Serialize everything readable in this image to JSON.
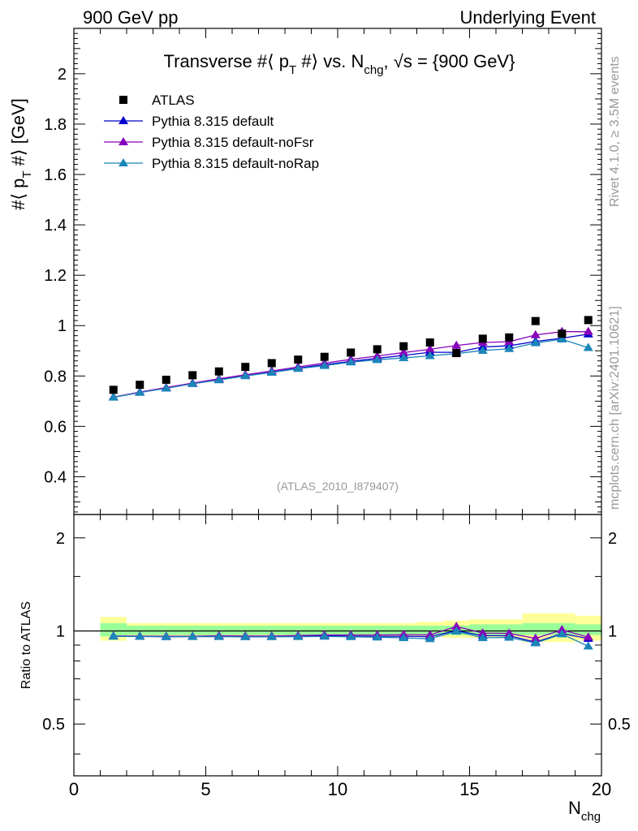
{
  "header": {
    "left": "900 GeV pp",
    "right": "Underlying Event"
  },
  "side_labels": {
    "rivet": "Rivet 4.1.0, ≥ 3.5M events",
    "mcplots": "mcplots.cern.ch [arXiv:2401.10621]"
  },
  "chart_data": [
    {
      "type": "line",
      "title": "Transverse #⟨ p_T #⟩ vs. N_chg, √s = {900 GeV}",
      "title_parts": {
        "pre": "Transverse #⟨ p",
        "sub1": "T",
        "mid": " #⟩ vs. N",
        "sub2": "chg",
        "post": ", √s = {900 GeV}"
      },
      "ylabel_parts": {
        "pre": "#⟨ p",
        "sub": "T",
        "post": " #⟩ [GeV]"
      },
      "xlabel_parts": {
        "main": "N",
        "sub": "chg"
      },
      "watermark": "(ATLAS_2010_I879407)",
      "xlim": [
        0,
        20
      ],
      "ylim": [
        0.25,
        2.18
      ],
      "y_ticks": [
        0.4,
        0.6,
        0.8,
        1.0,
        1.2,
        1.4,
        1.6,
        1.8,
        2.0
      ],
      "y_tick_labels": [
        "0.4",
        "0.6",
        "0.8",
        "1",
        "1.2",
        "1.4",
        "1.6",
        "1.8",
        "2"
      ],
      "x": [
        1.5,
        2.5,
        3.5,
        4.5,
        5.5,
        6.5,
        7.5,
        8.5,
        9.5,
        10.5,
        11.5,
        12.5,
        13.5,
        14.5,
        15.5,
        16.5,
        17.5,
        18.5,
        19.5
      ],
      "legend_position": "top-left",
      "series": [
        {
          "name": "ATLAS",
          "marker": "square",
          "color": "#000000",
          "values": [
            0.745,
            0.765,
            0.785,
            0.803,
            0.818,
            0.836,
            0.851,
            0.865,
            0.876,
            0.893,
            0.906,
            0.918,
            0.933,
            0.891,
            0.948,
            0.953,
            1.018,
            0.968,
            1.022
          ]
        },
        {
          "name": "Pythia 8.315 default",
          "marker": "triangle",
          "color": "#0000cc",
          "values": [
            0.716,
            0.735,
            0.752,
            0.77,
            0.786,
            0.801,
            0.816,
            0.831,
            0.845,
            0.858,
            0.87,
            0.882,
            0.894,
            0.894,
            0.915,
            0.92,
            0.937,
            0.95,
            0.966
          ]
        },
        {
          "name": "Pythia 8.315 default-noFsr",
          "marker": "triangle",
          "color": "#8800bb",
          "values": [
            0.716,
            0.736,
            0.754,
            0.772,
            0.789,
            0.805,
            0.82,
            0.836,
            0.851,
            0.866,
            0.879,
            0.893,
            0.906,
            0.921,
            0.933,
            0.936,
            0.963,
            0.976,
            0.976
          ]
        },
        {
          "name": "Pythia 8.315 default-noRap",
          "marker": "triangle",
          "color": "#1a86b8",
          "values": [
            0.715,
            0.734,
            0.751,
            0.769,
            0.784,
            0.8,
            0.814,
            0.829,
            0.841,
            0.855,
            0.864,
            0.872,
            0.88,
            0.889,
            0.901,
            0.908,
            0.931,
            0.946,
            0.912
          ]
        }
      ]
    },
    {
      "type": "line",
      "ylabel": "Ratio to ATLAS",
      "xlim": [
        0,
        20
      ],
      "ylim": [
        0.34,
        2.38
      ],
      "y_scale": "log",
      "y_ticks": [
        0.5,
        1,
        2
      ],
      "y_tick_labels": [
        "0.5",
        "1",
        "2"
      ],
      "x_ticks": [
        0,
        5,
        10,
        15,
        20
      ],
      "x_tick_labels": [
        "0",
        "5",
        "10",
        "15",
        "20"
      ],
      "bands": {
        "x_edges": [
          1,
          2,
          3,
          4,
          5,
          6,
          7,
          8,
          9,
          10,
          11,
          12,
          13,
          14,
          15,
          16,
          17,
          18,
          19,
          20
        ],
        "outer_color": "#ffff99",
        "inner_color": "#99ff99",
        "outer": [
          [
            0.93,
            1.11
          ],
          [
            0.96,
            1.06
          ],
          [
            0.96,
            1.06
          ],
          [
            0.96,
            1.06
          ],
          [
            0.96,
            1.06
          ],
          [
            0.96,
            1.06
          ],
          [
            0.96,
            1.06
          ],
          [
            0.96,
            1.06
          ],
          [
            0.96,
            1.06
          ],
          [
            0.96,
            1.06
          ],
          [
            0.96,
            1.06
          ],
          [
            0.96,
            1.06
          ],
          [
            0.96,
            1.07
          ],
          [
            0.95,
            1.08
          ],
          [
            0.95,
            1.09
          ],
          [
            0.95,
            1.09
          ],
          [
            0.92,
            1.14
          ],
          [
            0.92,
            1.14
          ],
          [
            0.93,
            1.12
          ]
        ],
        "inner": [
          [
            0.96,
            1.06
          ],
          [
            0.97,
            1.04
          ],
          [
            0.97,
            1.04
          ],
          [
            0.97,
            1.04
          ],
          [
            0.97,
            1.04
          ],
          [
            0.97,
            1.04
          ],
          [
            0.97,
            1.04
          ],
          [
            0.97,
            1.04
          ],
          [
            0.97,
            1.04
          ],
          [
            0.97,
            1.04
          ],
          [
            0.97,
            1.04
          ],
          [
            0.97,
            1.04
          ],
          [
            0.97,
            1.04
          ],
          [
            0.97,
            1.04
          ],
          [
            0.97,
            1.05
          ],
          [
            0.97,
            1.05
          ],
          [
            0.97,
            1.06
          ],
          [
            0.97,
            1.06
          ],
          [
            0.97,
            1.05
          ]
        ]
      },
      "series": [
        {
          "name": "Pythia 8.315 default",
          "color": "#0000cc",
          "values": [
            0.962,
            0.961,
            0.958,
            0.959,
            0.961,
            0.958,
            0.959,
            0.961,
            0.965,
            0.961,
            0.96,
            0.961,
            0.958,
            1.003,
            0.965,
            0.965,
            0.92,
            0.981,
            0.945
          ]
        },
        {
          "name": "Pythia 8.315 default-noFsr",
          "color": "#8800bb",
          "values": [
            0.962,
            0.962,
            0.961,
            0.961,
            0.965,
            0.963,
            0.963,
            0.966,
            0.971,
            0.97,
            0.97,
            0.973,
            0.971,
            1.034,
            0.984,
            0.982,
            0.946,
            1.008,
            0.955
          ]
        },
        {
          "name": "Pythia 8.315 default-noRap",
          "color": "#1a86b8",
          "values": [
            0.96,
            0.959,
            0.957,
            0.958,
            0.958,
            0.957,
            0.957,
            0.958,
            0.96,
            0.957,
            0.954,
            0.95,
            0.943,
            0.998,
            0.95,
            0.953,
            0.914,
            0.977,
            0.892
          ]
        }
      ]
    }
  ]
}
